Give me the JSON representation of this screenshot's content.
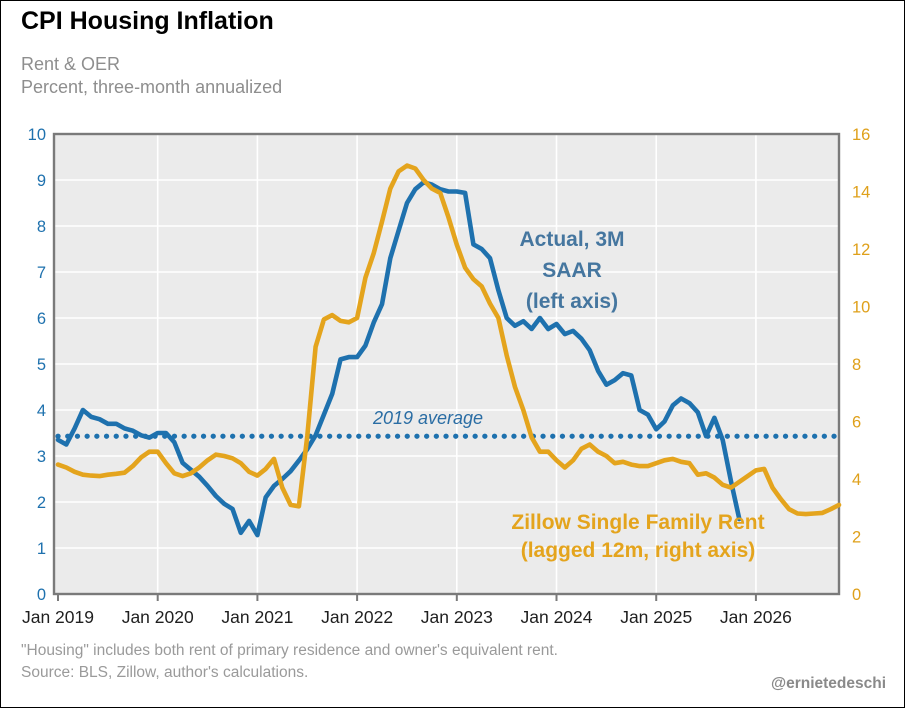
{
  "header": {
    "title": "CPI Housing Inflation",
    "subtitle_line1": "Rent & OER",
    "subtitle_line2": "Percent, three-month annualized"
  },
  "footer": {
    "note": "\"Housing\" includes both rent of primary residence and owner's equivalent rent.",
    "source": "Source: BLS, Zillow, author's calculations.",
    "handle": "@ernietedeschi"
  },
  "colors": {
    "blue": "#1e71ae",
    "orange": "#e4a41d",
    "annotation_blue": "#45769f",
    "avg_label_blue": "#2a6da4",
    "right_tick_orange": "#dfa01a",
    "x_label": "#1f1f1f",
    "plot_bg": "#ebebeb",
    "grid": "#ffffff",
    "plot_frame": "#7a7a7a"
  },
  "chart_data": {
    "type": "line",
    "title": "CPI Housing Inflation",
    "subtitle": "Rent & OER — Percent, three-month annualized",
    "x_tick_labels": [
      "Jan 2019",
      "Jan 2020",
      "Jan 2021",
      "Jan 2022",
      "Jan 2023",
      "Jan 2024",
      "Jan 2025",
      "Jan 2026"
    ],
    "left_axis": {
      "min": 0,
      "max": 10,
      "tick_step": 1,
      "tick_labels": [
        "0",
        "1",
        "2",
        "3",
        "4",
        "5",
        "6",
        "7",
        "8",
        "9",
        "10"
      ]
    },
    "right_axis": {
      "min": 0,
      "max": 16,
      "tick_step": 2,
      "tick_labels": [
        "0",
        "2",
        "4",
        "6",
        "8",
        "10",
        "12",
        "14",
        "16"
      ]
    },
    "grid": true,
    "avg_line": {
      "label": "2019 average",
      "value_left_axis": 3.43,
      "style": "dotted"
    },
    "series": [
      {
        "name": "Actual, 3M SAAR (left axis)",
        "axis": "left",
        "color_key": "blue",
        "start": "2019-01",
        "frequency": "monthly",
        "values": [
          3.35,
          3.25,
          3.6,
          4.0,
          3.85,
          3.8,
          3.7,
          3.7,
          3.6,
          3.55,
          3.45,
          3.4,
          3.5,
          3.5,
          3.3,
          2.85,
          2.7,
          2.55,
          2.35,
          2.13,
          1.96,
          1.85,
          1.33,
          1.59,
          1.28,
          2.1,
          2.35,
          2.5,
          2.67,
          2.9,
          3.15,
          3.45,
          3.9,
          4.35,
          5.1,
          5.15,
          5.15,
          5.4,
          5.9,
          6.3,
          7.3,
          7.9,
          8.5,
          8.8,
          8.95,
          8.9,
          8.8,
          8.75,
          8.75,
          8.72,
          7.6,
          7.5,
          7.3,
          6.6,
          6.0,
          5.83,
          5.93,
          5.76,
          6.0,
          5.76,
          5.87,
          5.65,
          5.72,
          5.55,
          5.3,
          4.85,
          4.55,
          4.65,
          4.8,
          4.75,
          4.0,
          3.9,
          3.58,
          3.75,
          4.1,
          4.25,
          4.15,
          3.95,
          3.43,
          3.83,
          3.35,
          2.45,
          1.63
        ]
      },
      {
        "name": "Zillow Single Family Rent (lagged 12m, right axis)",
        "axis": "right",
        "color_key": "orange",
        "start": "2019-01",
        "frequency": "monthly",
        "values": [
          4.5,
          4.4,
          4.25,
          4.15,
          4.12,
          4.1,
          4.15,
          4.18,
          4.22,
          4.45,
          4.75,
          4.95,
          4.95,
          4.55,
          4.2,
          4.1,
          4.2,
          4.4,
          4.65,
          4.85,
          4.8,
          4.72,
          4.55,
          4.25,
          4.12,
          4.35,
          4.7,
          3.7,
          3.1,
          3.05,
          5.5,
          8.6,
          9.55,
          9.7,
          9.5,
          9.45,
          9.6,
          11.0,
          11.85,
          12.95,
          14.1,
          14.7,
          14.9,
          14.8,
          14.4,
          14.1,
          13.95,
          13.1,
          12.15,
          11.35,
          10.95,
          10.7,
          10.1,
          9.6,
          8.3,
          7.2,
          6.4,
          5.45,
          4.95,
          4.95,
          4.65,
          4.4,
          4.65,
          5.05,
          5.2,
          4.95,
          4.8,
          4.55,
          4.6,
          4.5,
          4.45,
          4.45,
          4.55,
          4.65,
          4.7,
          4.6,
          4.55,
          4.15,
          4.2,
          4.05,
          3.8,
          3.7,
          3.9,
          4.1,
          4.3,
          4.35,
          3.7,
          3.3,
          2.95,
          2.8,
          2.78,
          2.8,
          2.82,
          2.95,
          3.1
        ]
      }
    ],
    "annotations": {
      "actual_label": {
        "lines": [
          "Actual, 3M",
          "SAAR",
          "(left axis)"
        ]
      },
      "zillow_label": {
        "lines": [
          "Zillow Single Family Rent",
          "(lagged 12m, right axis)"
        ]
      }
    },
    "legend_position": "annotated-on-chart"
  }
}
